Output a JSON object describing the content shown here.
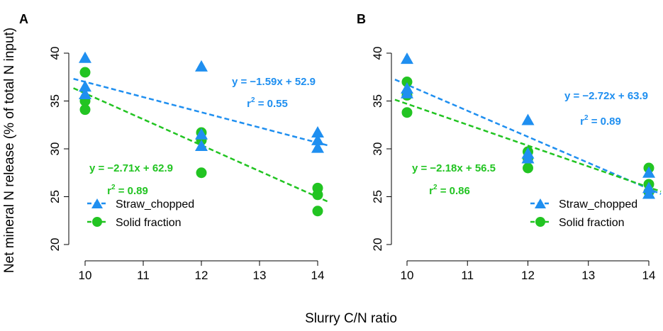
{
  "figure": {
    "ylabel": "Net mineral N release (% of total N input)",
    "xlabel": "Slurry C/N ratio",
    "colors": {
      "straw": "#1f8ff0",
      "solid": "#22c422"
    }
  },
  "chart_data": [
    {
      "type": "scatter",
      "panel": "A",
      "xlim": [
        9.8,
        14.2
      ],
      "ylim": [
        20,
        40
      ],
      "x_ticks": [
        "10",
        "11",
        "12",
        "13",
        "14"
      ],
      "y_ticks": [
        "20",
        "25",
        "30",
        "35",
        "40"
      ],
      "series": [
        {
          "name": "Straw_chopped",
          "marker": "triangle",
          "color": "#1f8ff0",
          "points": [
            [
              10,
              39.5
            ],
            [
              10,
              36.5
            ],
            [
              10,
              35.7
            ],
            [
              12,
              38.6
            ],
            [
              12,
              31.5
            ],
            [
              12,
              30.3
            ],
            [
              14,
              31.7
            ],
            [
              14,
              30.9
            ],
            [
              14,
              30.1
            ]
          ],
          "fit": {
            "slope": -1.59,
            "intercept": 52.9
          },
          "equation": "y = −1.59x + 52.9",
          "r2_label": "r",
          "r2_exp": "2",
          "r2_value": " = 0.55"
        },
        {
          "name": "Solid fraction",
          "marker": "circle",
          "color": "#22c422",
          "points": [
            [
              10,
              38.0
            ],
            [
              10,
              35.0
            ],
            [
              10,
              34.1
            ],
            [
              12,
              31.7
            ],
            [
              12,
              30.9
            ],
            [
              12,
              27.5
            ],
            [
              14,
              25.9
            ],
            [
              14,
              25.2
            ],
            [
              14,
              23.5
            ]
          ],
          "fit": {
            "slope": -2.71,
            "intercept": 62.9
          },
          "equation": "y = −2.71x + 62.9",
          "r2_label": "r",
          "r2_exp": "2",
          "r2_value": " = 0.89"
        }
      ],
      "legend": [
        "Straw_chopped",
        "Solid fraction"
      ]
    },
    {
      "type": "scatter",
      "panel": "B",
      "xlim": [
        9.8,
        14.2
      ],
      "ylim": [
        20,
        40
      ],
      "x_ticks": [
        "10",
        "11",
        "12",
        "13",
        "14"
      ],
      "y_ticks": [
        "20",
        "25",
        "30",
        "35",
        "40"
      ],
      "series": [
        {
          "name": "Straw_chopped",
          "marker": "triangle",
          "color": "#1f8ff0",
          "points": [
            [
              10,
              39.4
            ],
            [
              10,
              36.3
            ],
            [
              10,
              35.8
            ],
            [
              12,
              33.0
            ],
            [
              12,
              29.5
            ],
            [
              12,
              29.0
            ],
            [
              14,
              27.5
            ],
            [
              14,
              25.9
            ],
            [
              14,
              25.3
            ]
          ],
          "fit": {
            "slope": -2.72,
            "intercept": 63.9
          },
          "equation": "y = −2.72x + 63.9",
          "r2_label": "r",
          "r2_exp": "2",
          "r2_value": " = 0.89"
        },
        {
          "name": "Solid fraction",
          "marker": "circle",
          "color": "#22c422",
          "points": [
            [
              10,
              37.0
            ],
            [
              10,
              35.6
            ],
            [
              10,
              33.8
            ],
            [
              12,
              29.7
            ],
            [
              12,
              29.0
            ],
            [
              12,
              28.0
            ],
            [
              14,
              28.0
            ],
            [
              14,
              26.3
            ],
            [
              14,
              25.5
            ]
          ],
          "fit": {
            "slope": -2.18,
            "intercept": 56.5
          },
          "equation": "y = −2.18x + 56.5",
          "r2_label": "r",
          "r2_exp": "2",
          "r2_value": " = 0.86"
        }
      ],
      "legend": [
        "Straw_chopped",
        "Solid fraction"
      ]
    }
  ]
}
